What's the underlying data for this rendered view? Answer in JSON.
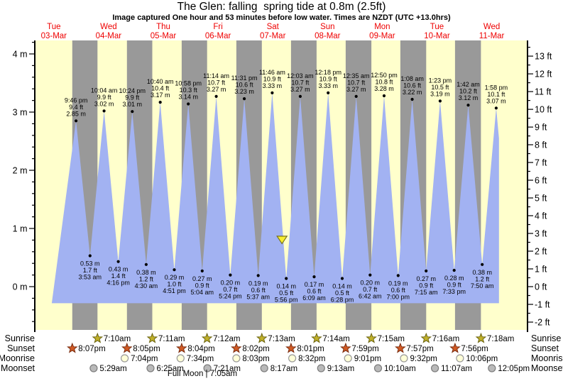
{
  "title": "The Glen: falling  spring tide at 0.8m (2.5ft)",
  "subtitle": "Image captured One hour and 53 minutes before low water. Times are NZDT (UTC +13.0hrs)",
  "chart_data": {
    "type": "area",
    "title": "The Glen: falling  spring tide at 0.8m (2.5ft)",
    "days": [
      {
        "name": "Tue",
        "date": "03-Mar"
      },
      {
        "name": "Wed",
        "date": "04-Mar"
      },
      {
        "name": "Thu",
        "date": "05-Mar"
      },
      {
        "name": "Fri",
        "date": "06-Mar"
      },
      {
        "name": "Sat",
        "date": "07-Mar"
      },
      {
        "name": "Sun",
        "date": "08-Mar"
      },
      {
        "name": "Mon",
        "date": "09-Mar"
      },
      {
        "name": "Tue",
        "date": "10-Mar"
      },
      {
        "name": "Wed",
        "date": "11-Mar"
      }
    ],
    "y_axis_left": {
      "unit": "m",
      "tick_labels": [
        "4 m",
        "3 m",
        "2 m",
        "1 m",
        "0 m"
      ]
    },
    "y_axis_right": {
      "unit": "ft",
      "tick_labels": [
        "13 ft",
        "12 ft",
        "11 ft",
        "10 ft",
        "9 ft",
        "8 ft",
        "7 ft",
        "6 ft",
        "5 ft",
        "4 ft",
        "3 ft",
        "2 ft",
        "1 ft",
        "0 ft",
        "-1 ft",
        "-2 ft"
      ]
    },
    "extremes": [
      {
        "kind": "high",
        "day": 0,
        "time": "9:46 pm",
        "ft_label": "9.4 ft",
        "m_label": "2.85 m"
      },
      {
        "kind": "low",
        "day": 1,
        "time": "3:53 am",
        "ft_label": "1.7 ft",
        "m_label": "0.53 m"
      },
      {
        "kind": "high",
        "day": 1,
        "time": "10:04 am",
        "ft_label": "9.9 ft",
        "m_label": "3.02 m"
      },
      {
        "kind": "low",
        "day": 1,
        "time": "4:16 pm",
        "ft_label": "1.4 ft",
        "m_label": "0.43 m"
      },
      {
        "kind": "high",
        "day": 1,
        "time": "10:24 pm",
        "ft_label": "9.9 ft",
        "m_label": "3.01 m"
      },
      {
        "kind": "low",
        "day": 2,
        "time": "4:30 am",
        "ft_label": "1.2 ft",
        "m_label": "0.38 m"
      },
      {
        "kind": "high",
        "day": 2,
        "time": "10:40 am",
        "ft_label": "10.4 ft",
        "m_label": "3.17 m"
      },
      {
        "kind": "low",
        "day": 2,
        "time": "4:51 pm",
        "ft_label": "1.0 ft",
        "m_label": "0.29 m"
      },
      {
        "kind": "high",
        "day": 2,
        "time": "10:58 pm",
        "ft_label": "10.3 ft",
        "m_label": "3.14 m"
      },
      {
        "kind": "low",
        "day": 3,
        "time": "5:04 am",
        "ft_label": "0.9 ft",
        "m_label": "0.27 m"
      },
      {
        "kind": "high",
        "day": 3,
        "time": "11:14 am",
        "ft_label": "10.7 ft",
        "m_label": "3.27 m"
      },
      {
        "kind": "low",
        "day": 3,
        "time": "5:24 pm",
        "ft_label": "0.7 ft",
        "m_label": "0.20 m"
      },
      {
        "kind": "high",
        "day": 3,
        "time": "11:31 pm",
        "ft_label": "10.6 ft",
        "m_label": "3.23 m"
      },
      {
        "kind": "low",
        "day": 4,
        "time": "5:37 am",
        "ft_label": "0.6 ft",
        "m_label": "0.19 m"
      },
      {
        "kind": "high",
        "day": 4,
        "time": "11:46 am",
        "ft_label": "10.9 ft",
        "m_label": "3.33 m"
      },
      {
        "kind": "low",
        "day": 4,
        "time": "5:56 pm",
        "ft_label": "0.5 ft",
        "m_label": "0.14 m"
      },
      {
        "kind": "high",
        "day": 5,
        "time": "12:03 am",
        "ft_label": "10.7 ft",
        "m_label": "3.27 m"
      },
      {
        "kind": "low",
        "day": 5,
        "time": "6:09 am",
        "ft_label": "0.6 ft",
        "m_label": "0.17 m"
      },
      {
        "kind": "high",
        "day": 5,
        "time": "12:18 pm",
        "ft_label": "10.9 ft",
        "m_label": "3.33 m"
      },
      {
        "kind": "low",
        "day": 5,
        "time": "6:28 pm",
        "ft_label": "0.5 ft",
        "m_label": "0.14 m"
      },
      {
        "kind": "high",
        "day": 6,
        "time": "12:35 am",
        "ft_label": "10.7 ft",
        "m_label": "3.27 m"
      },
      {
        "kind": "low",
        "day": 6,
        "time": "6:42 am",
        "ft_label": "0.7 ft",
        "m_label": "0.20 m"
      },
      {
        "kind": "high",
        "day": 6,
        "time": "12:50 pm",
        "ft_label": "10.8 ft",
        "m_label": "3.28 m"
      },
      {
        "kind": "low",
        "day": 6,
        "time": "7:00 pm",
        "ft_label": "0.6 ft",
        "m_label": "0.19 m"
      },
      {
        "kind": "high",
        "day": 7,
        "time": "1:08 am",
        "ft_label": "10.6 ft",
        "m_label": "3.22 m"
      },
      {
        "kind": "low",
        "day": 7,
        "time": "7:15 am",
        "ft_label": "0.9 ft",
        "m_label": "0.27 m"
      },
      {
        "kind": "high",
        "day": 7,
        "time": "1:23 pm",
        "ft_label": "10.5 ft",
        "m_label": "3.19 m"
      },
      {
        "kind": "low",
        "day": 7,
        "time": "7:33 pm",
        "ft_label": "0.9 ft",
        "m_label": "0.28 m"
      },
      {
        "kind": "high",
        "day": 8,
        "time": "1:42 am",
        "ft_label": "10.2 ft",
        "m_label": "3.12 m"
      },
      {
        "kind": "low",
        "day": 8,
        "time": "7:50 am",
        "ft_label": "1.2 ft",
        "m_label": "0.38 m"
      },
      {
        "kind": "high",
        "day": 8,
        "time": "1:58 pm",
        "ft_label": "10.1 ft",
        "m_label": "3.07 m"
      }
    ],
    "current_marker": {
      "day": 4,
      "time": "4:03 pm",
      "level_m": 0.8
    },
    "astro": {
      "rows": [
        {
          "key": "sunrise",
          "label": "Sunrise",
          "events": [
            {
              "day": 1,
              "time": "7:10am"
            },
            {
              "day": 2,
              "time": "7:11am"
            },
            {
              "day": 3,
              "time": "7:12am"
            },
            {
              "day": 4,
              "time": "7:13am"
            },
            {
              "day": 5,
              "time": "7:14am"
            },
            {
              "day": 6,
              "time": "7:15am"
            },
            {
              "day": 7,
              "time": "7:16am"
            },
            {
              "day": 8,
              "time": "7:18am"
            }
          ]
        },
        {
          "key": "sunset",
          "label": "Sunset",
          "events": [
            {
              "day": 0,
              "time": "8:07pm"
            },
            {
              "day": 1,
              "time": "8:05pm"
            },
            {
              "day": 2,
              "time": "8:04pm"
            },
            {
              "day": 3,
              "time": "8:02pm"
            },
            {
              "day": 4,
              "time": "8:01pm"
            },
            {
              "day": 5,
              "time": "7:59pm"
            },
            {
              "day": 6,
              "time": "7:57pm"
            },
            {
              "day": 7,
              "time": "7:56pm"
            }
          ]
        },
        {
          "key": "moonrise",
          "label": "Moonrise",
          "events": [
            {
              "day": 1,
              "time": "7:04pm"
            },
            {
              "day": 2,
              "time": "7:34pm"
            },
            {
              "day": 3,
              "time": "8:03pm"
            },
            {
              "day": 4,
              "time": "8:32pm"
            },
            {
              "day": 5,
              "time": "9:01pm"
            },
            {
              "day": 6,
              "time": "9:32pm"
            },
            {
              "day": 7,
              "time": "10:06pm"
            }
          ]
        },
        {
          "key": "moonset",
          "label": "Moonset",
          "events": [
            {
              "day": 1,
              "time": "5:29am"
            },
            {
              "day": 2,
              "time": "6:25am"
            },
            {
              "day": 3,
              "time": "7:21am"
            },
            {
              "day": 4,
              "time": "8:17am"
            },
            {
              "day": 5,
              "time": "9:13am"
            },
            {
              "day": 6,
              "time": "10:10am"
            },
            {
              "day": 7,
              "time": "11:07am"
            },
            {
              "day": 8,
              "time": "12:05pm"
            }
          ]
        }
      ],
      "footnote": "Full Moon | 7:05am"
    },
    "colors": {
      "day_band": "#ffffcc",
      "night_band": "#999999",
      "tide_fill": "#a2b2f2",
      "day_label": "#ee0000",
      "axis": "#000000",
      "sunrise_star_fill": "#c0b02a",
      "sunrise_star_stroke": "#6b6410",
      "sunset_star_fill": "#d05a24",
      "sunset_star_stroke": "#7a2d10",
      "moonrise_fill": "#ffffd8",
      "moonrise_stroke": "#999999",
      "moonset_fill": "#b9b9b9",
      "moonset_stroke": "#7d7d7d",
      "marker_fill": "#f8ee2e",
      "marker_stroke": "#77711d"
    }
  }
}
